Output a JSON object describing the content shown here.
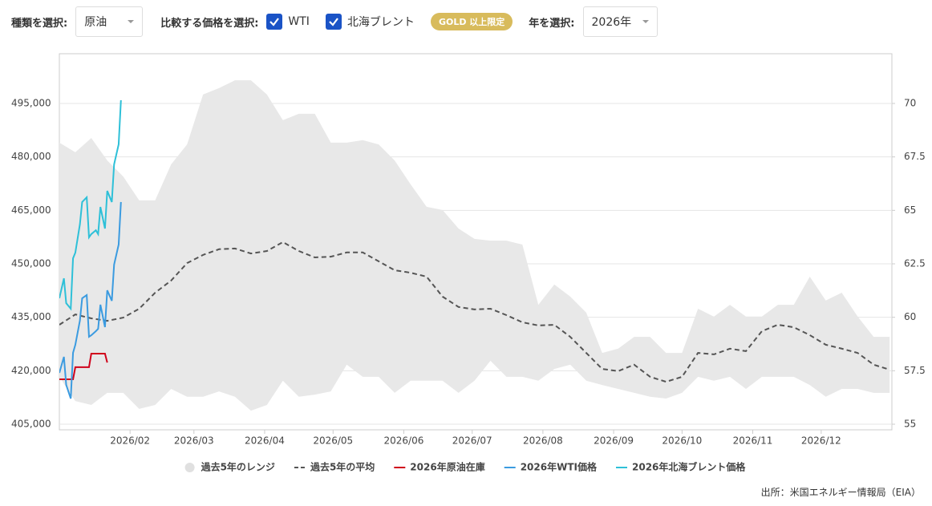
{
  "controls": {
    "type_label": "種類を選択:",
    "type_value": "原油",
    "compare_label": "比較する価格を選択:",
    "check_1": "WTI",
    "check_2": "北海ブレント",
    "badge": "GOLD 以上限定",
    "year_label": "年を選択:",
    "year_value": "2026年"
  },
  "chart_data": {
    "type": "line",
    "source": "出所：米国エネルギー情報局（EIA）",
    "xlim": [
      1,
      366
    ],
    "xticks": [
      {
        "value": 32,
        "label": "2026/02"
      },
      {
        "value": 60,
        "label": "2026/03"
      },
      {
        "value": 91,
        "label": "2026/04"
      },
      {
        "value": 121,
        "label": "2026/05"
      },
      {
        "value": 152,
        "label": "2026/06"
      },
      {
        "value": 182,
        "label": "2026/07"
      },
      {
        "value": 213,
        "label": "2026/08"
      },
      {
        "value": 244,
        "label": "2026/09"
      },
      {
        "value": 274,
        "label": "2026/10"
      },
      {
        "value": 305,
        "label": "2026/11"
      },
      {
        "value": 335,
        "label": "2026/12"
      }
    ],
    "ylim": [
      403425,
      508950
    ],
    "yticks": [
      {
        "value": 405000,
        "label": "405,000"
      },
      {
        "value": 420000,
        "label": "420,000"
      },
      {
        "value": 435000,
        "label": "435,000"
      },
      {
        "value": 450000,
        "label": "450,000"
      },
      {
        "value": 465000,
        "label": "465,000"
      },
      {
        "value": 480000,
        "label": "480,000"
      },
      {
        "value": 495000,
        "label": "495,000"
      }
    ],
    "y2lim": [
      54.7375,
      72.325
    ],
    "y2ticks": [
      55,
      57.5,
      60,
      62.5,
      65,
      67.5,
      70
    ],
    "grid": true,
    "series": [
      {
        "name": "過去5年のレンジ",
        "type": "range",
        "color": "#e8e8e8",
        "x": [
          1,
          8,
          15,
          22,
          29,
          36,
          43,
          50,
          57,
          64,
          71,
          78,
          85,
          92,
          99,
          106,
          113,
          120,
          127,
          134,
          141,
          148,
          155,
          162,
          169,
          176,
          183,
          190,
          197,
          204,
          211,
          218,
          225,
          232,
          239,
          246,
          253,
          260,
          267,
          274,
          281,
          288,
          295,
          302,
          309,
          316,
          323,
          330,
          337,
          344,
          351,
          358,
          365
        ],
        "high": [
          484000,
          481300,
          485300,
          479000,
          474500,
          467800,
          467800,
          477900,
          483500,
          497500,
          499300,
          501500,
          501500,
          497500,
          490300,
          492100,
          492100,
          484000,
          484000,
          484700,
          483500,
          479000,
          472300,
          466000,
          465100,
          459900,
          457000,
          456500,
          456500,
          455400,
          438500,
          444200,
          440800,
          436300,
          425000,
          426200,
          429500,
          429500,
          425000,
          425000,
          437400,
          435200,
          438500,
          435200,
          435200,
          438500,
          438500,
          446400,
          439700,
          441900,
          435200,
          429500,
          429500
        ],
        "low": [
          418300,
          411500,
          410400,
          413800,
          413800,
          409300,
          410400,
          414900,
          412700,
          412700,
          414200,
          412700,
          408800,
          410400,
          417200,
          412700,
          413300,
          414200,
          421700,
          418300,
          418300,
          413800,
          417200,
          417200,
          417200,
          413800,
          417200,
          422800,
          418300,
          418300,
          417200,
          420500,
          421700,
          417200,
          416000,
          414900,
          413800,
          412700,
          412200,
          413800,
          418300,
          417200,
          418300,
          414900,
          418300,
          418300,
          418300,
          416000,
          412700,
          414900,
          414900,
          413800,
          413800
        ]
      },
      {
        "name": "過去5年の平均",
        "color": "#555555",
        "dashed": true,
        "x": [
          1,
          8,
          15,
          22,
          29,
          36,
          43,
          50,
          57,
          64,
          71,
          78,
          85,
          92,
          99,
          106,
          113,
          120,
          127,
          134,
          141,
          148,
          155,
          162,
          169,
          176,
          183,
          190,
          197,
          204,
          211,
          218,
          225,
          232,
          239,
          246,
          253,
          260,
          267,
          274,
          281,
          288,
          295,
          302,
          309,
          316,
          323,
          330,
          337,
          344,
          351,
          358,
          365
        ],
        "values": [
          432900,
          435800,
          434700,
          434000,
          434900,
          437400,
          441900,
          445300,
          450200,
          452500,
          454100,
          454300,
          452900,
          453600,
          456100,
          453600,
          451800,
          452000,
          453200,
          453200,
          450700,
          448200,
          447500,
          446400,
          440800,
          437900,
          437200,
          437400,
          435600,
          433600,
          432700,
          432900,
          429500,
          425000,
          420500,
          419900,
          421700,
          418300,
          416900,
          418300,
          425000,
          424600,
          426200,
          425500,
          431100,
          432900,
          432200,
          430000,
          427300,
          426200,
          425000,
          421700,
          420300
        ]
      },
      {
        "name": "2026年原油在庫",
        "color": "#d0021b",
        "x": [
          1,
          7,
          8,
          14,
          15,
          21,
          22
        ],
        "values": [
          417600,
          417600,
          421000,
          421000,
          424800,
          424800,
          422300
        ]
      },
      {
        "name": "2026年WTI価格",
        "color": "#3b9be0",
        "axis": "y2",
        "x": [
          1,
          3,
          4,
          6,
          7,
          8,
          10,
          11,
          13,
          14,
          15,
          17,
          18,
          19,
          21,
          22,
          24,
          25,
          27,
          28
        ],
        "values": [
          57.4,
          58.15,
          56.84,
          56.2,
          58.34,
          58.71,
          59.84,
          60.89,
          61.04,
          59.09,
          59.16,
          59.35,
          59.46,
          60.59,
          59.54,
          61.26,
          60.77,
          62.46,
          63.4,
          65.39
        ]
      },
      {
        "name": "2026年北海ブレント価格",
        "color": "#2ec0d8",
        "axis": "y2",
        "x": [
          1,
          3,
          4,
          6,
          7,
          8,
          10,
          11,
          13,
          14,
          15,
          17,
          18,
          19,
          21,
          22,
          24,
          25,
          27,
          28
        ],
        "values": [
          60.89,
          61.82,
          60.66,
          60.4,
          62.76,
          63.02,
          64.34,
          65.39,
          65.61,
          63.74,
          63.89,
          64.07,
          63.89,
          65.16,
          64.15,
          65.91,
          65.39,
          67.15,
          68.09,
          70.15
        ]
      }
    ]
  }
}
